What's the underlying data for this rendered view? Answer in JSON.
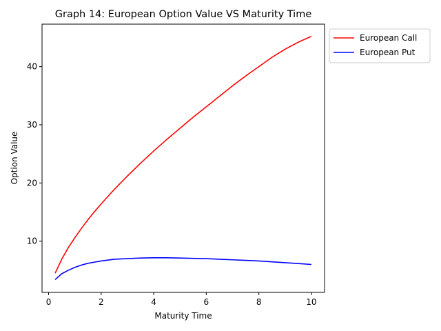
{
  "chart_data": {
    "type": "line",
    "title": "Graph 14: European Option Value VS Maturity Time",
    "xlabel": "Maturity Time",
    "ylabel": "Option Value",
    "xlim": [
      -0.25,
      10.5
    ],
    "ylim": [
      1.2,
      47.3
    ],
    "xticks": [
      0,
      2,
      4,
      6,
      8,
      10
    ],
    "yticks": [
      10,
      20,
      30,
      40
    ],
    "grid": false,
    "legend_position": "outside-top-right",
    "series": [
      {
        "name": "European Call",
        "color": "#ff0000",
        "x": [
          0.25,
          0.5,
          0.75,
          1,
          1.25,
          1.5,
          1.75,
          2,
          2.5,
          3,
          3.5,
          4,
          4.5,
          5,
          5.5,
          6,
          6.5,
          7,
          7.5,
          8,
          8.5,
          9,
          9.5,
          10
        ],
        "y": [
          4.5,
          6.9,
          8.9,
          10.6,
          12.2,
          13.7,
          15.1,
          16.4,
          18.9,
          21.2,
          23.4,
          25.5,
          27.5,
          29.4,
          31.3,
          33.1,
          34.9,
          36.7,
          38.4,
          40.0,
          41.6,
          43.0,
          44.2,
          45.2
        ]
      },
      {
        "name": "European Put",
        "color": "#0000ff",
        "x": [
          0.25,
          0.5,
          0.75,
          1,
          1.25,
          1.5,
          1.75,
          2,
          2.5,
          3,
          3.5,
          4,
          4.5,
          5,
          5.5,
          6,
          6.5,
          7,
          7.5,
          8,
          8.5,
          9,
          9.5,
          10
        ],
        "y": [
          3.4,
          4.4,
          5.0,
          5.5,
          5.9,
          6.2,
          6.4,
          6.6,
          6.9,
          7.0,
          7.1,
          7.15,
          7.15,
          7.1,
          7.05,
          7.0,
          6.9,
          6.8,
          6.7,
          6.6,
          6.45,
          6.3,
          6.15,
          6.0
        ]
      }
    ]
  }
}
